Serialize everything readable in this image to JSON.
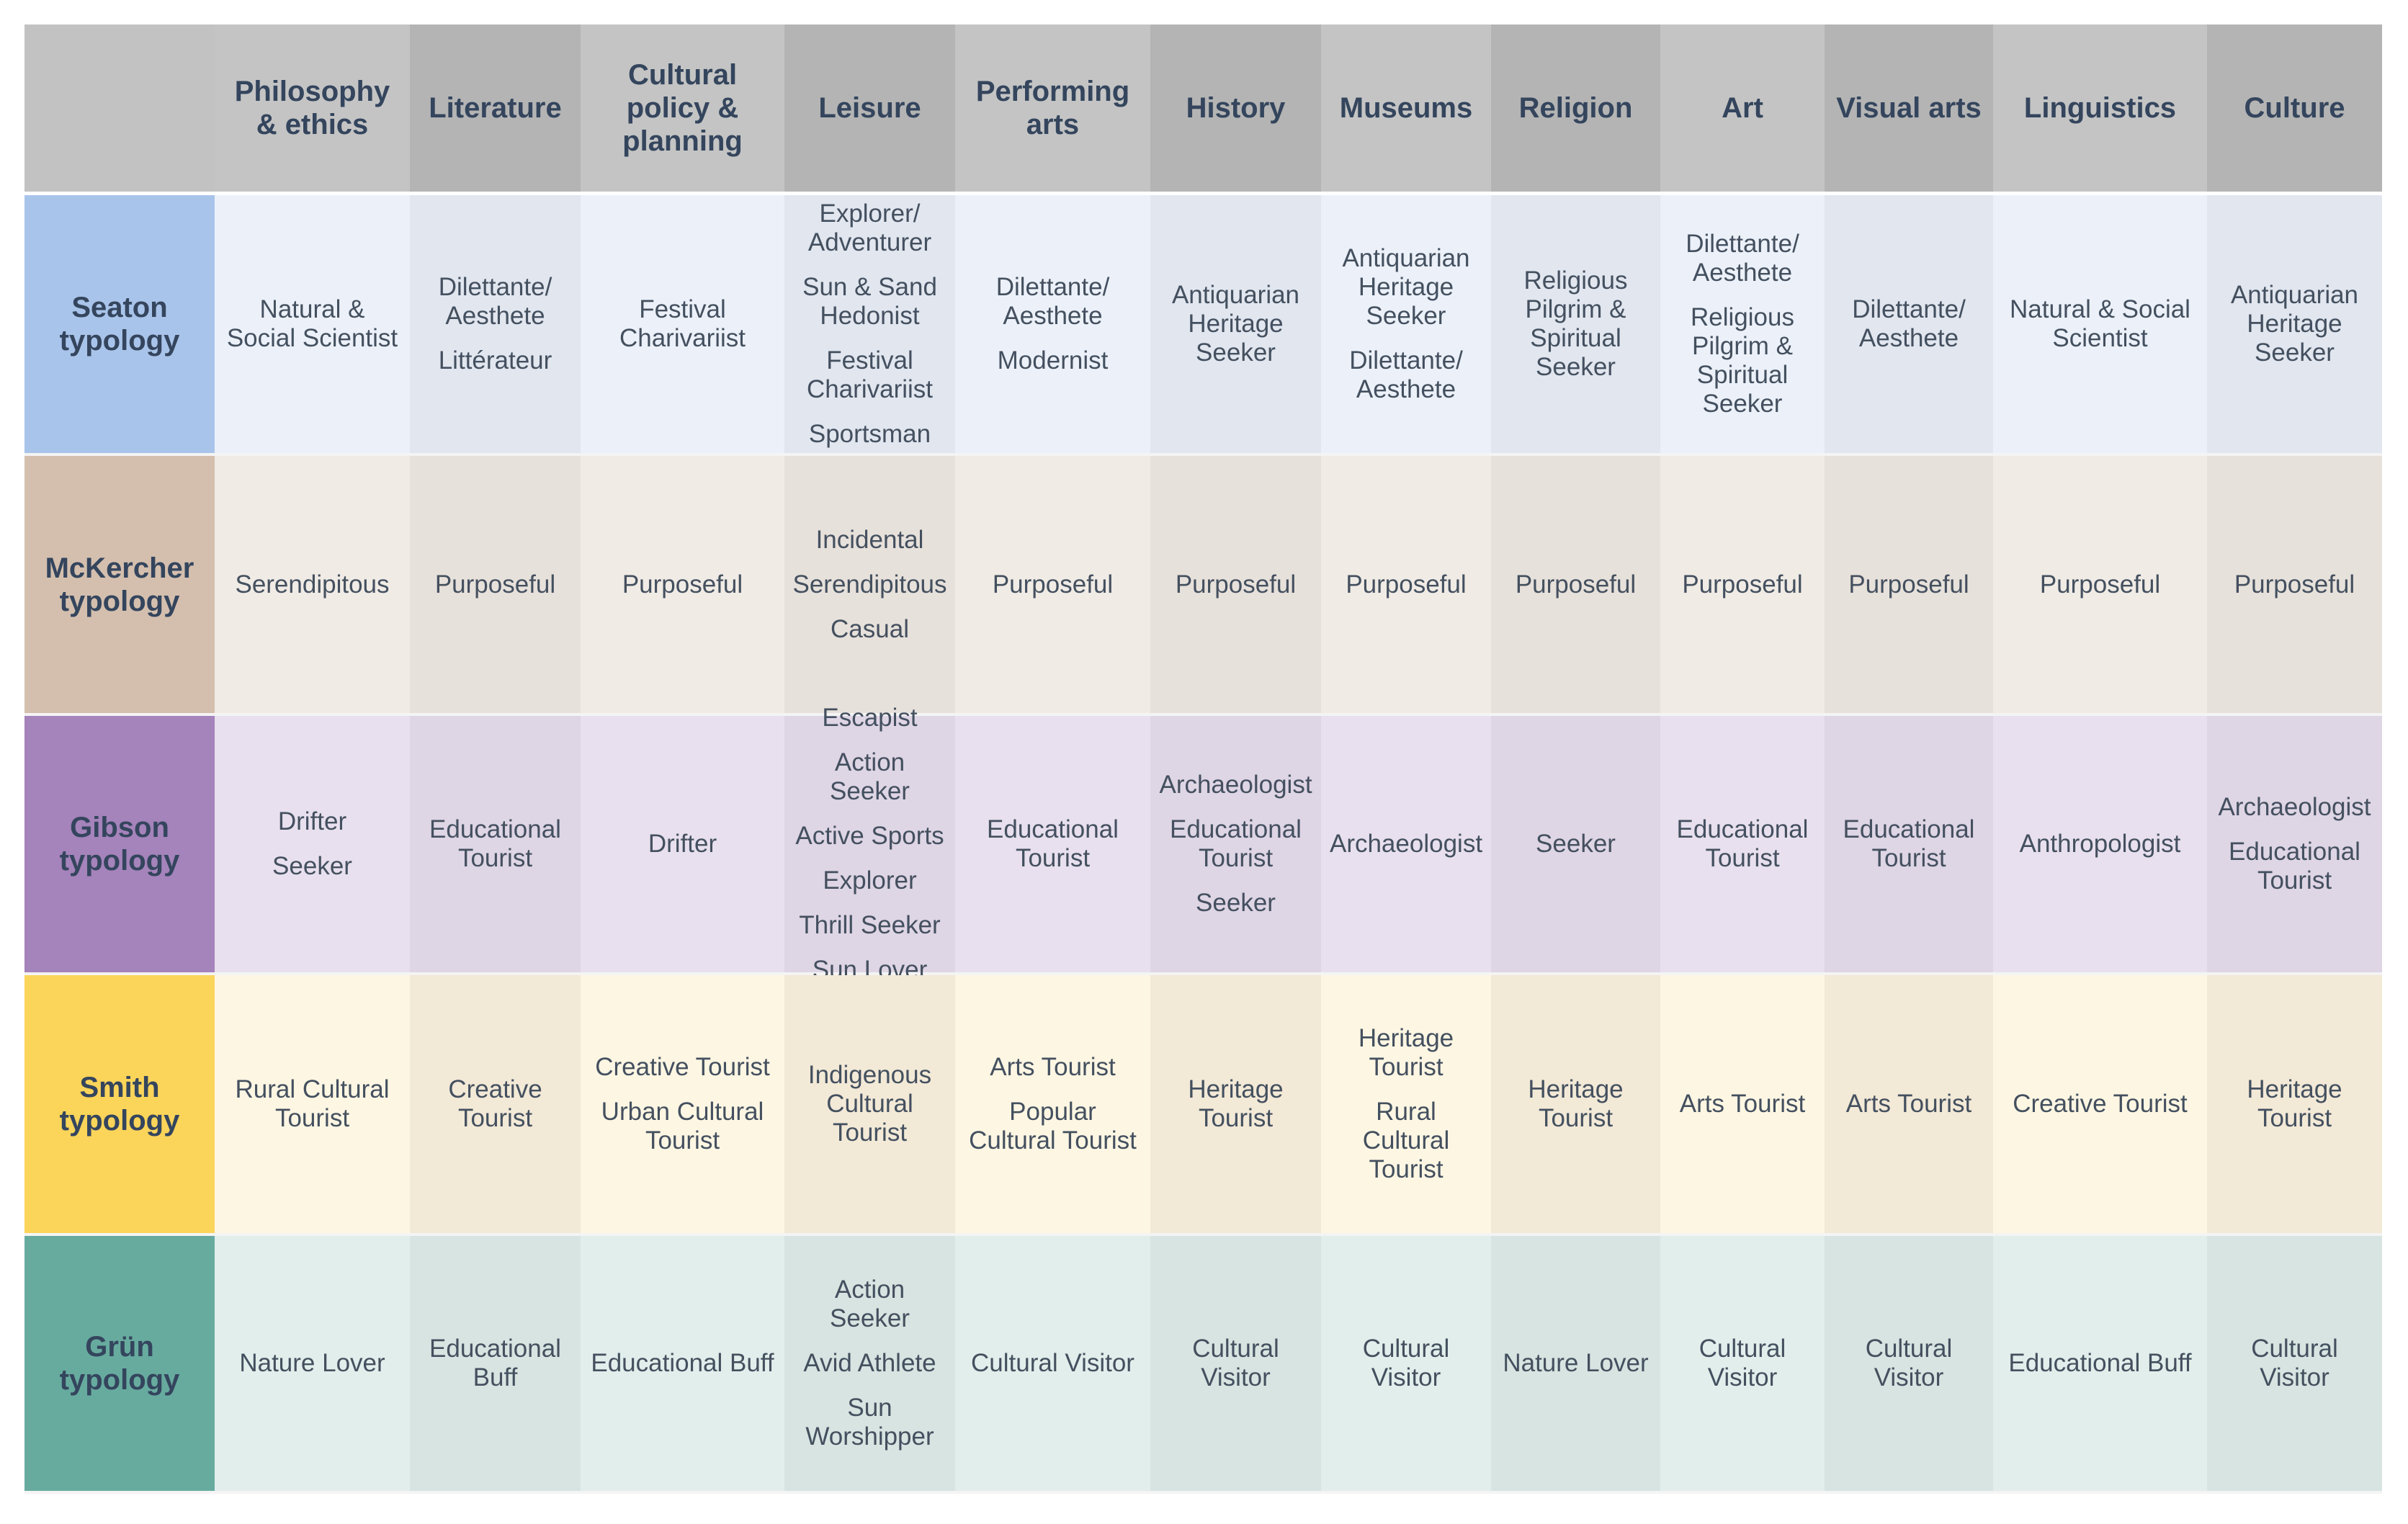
{
  "header": {
    "columns": [
      "Philosophy & ethics",
      "Literature",
      "Cultural policy & planning",
      "Leisure",
      "Performing arts",
      "History",
      "Museums",
      "Religion",
      "Art",
      "Visual arts",
      "Linguistics",
      "Culture"
    ]
  },
  "rows": [
    {
      "label": "Seaton typology",
      "cells": [
        [
          "Natural & Social Scientist"
        ],
        [
          "Dilettante/ Aesthete",
          "Littérateur"
        ],
        [
          "Festival Charivariist"
        ],
        [
          "Explorer/ Adventurer",
          "Sun & Sand Hedonist",
          "Festival Charivariist",
          "Sportsman"
        ],
        [
          "Dilettante/ Aesthete",
          "Modernist"
        ],
        [
          "Antiquarian Heritage Seeker"
        ],
        [
          "Antiquarian Heritage Seeker",
          "Dilettante/ Aesthete"
        ],
        [
          "Religious Pilgrim & Spiritual Seeker"
        ],
        [
          "Dilettante/ Aesthete",
          "Religious Pilgrim & Spiritual Seeker"
        ],
        [
          "Dilettante/ Aesthete"
        ],
        [
          "Natural & Social Scientist"
        ],
        [
          "Antiquarian Heritage Seeker"
        ]
      ]
    },
    {
      "label": "McKercher typology",
      "cells": [
        [
          "Serendipitous"
        ],
        [
          "Purposeful"
        ],
        [
          "Purposeful"
        ],
        [
          "Incidental",
          "Serendipitous",
          "Casual"
        ],
        [
          "Purposeful"
        ],
        [
          "Purposeful"
        ],
        [
          "Purposeful"
        ],
        [
          "Purposeful"
        ],
        [
          "Purposeful"
        ],
        [
          "Purposeful"
        ],
        [
          "Purposeful"
        ],
        [
          "Purposeful"
        ]
      ]
    },
    {
      "label": "Gibson typology",
      "cells": [
        [
          "Drifter",
          "Seeker"
        ],
        [
          "Educational Tourist"
        ],
        [
          "Drifter"
        ],
        [
          "Escapist",
          "Action Seeker",
          "Active Sports",
          "Explorer",
          "Thrill Seeker",
          "Sun Lover"
        ],
        [
          "Educational Tourist"
        ],
        [
          "Archaeologist",
          "Educational Tourist",
          "Seeker"
        ],
        [
          "Archaeologist"
        ],
        [
          "Seeker"
        ],
        [
          "Educational Tourist"
        ],
        [
          "Educational Tourist"
        ],
        [
          "Anthropologist"
        ],
        [
          "Archaeologist",
          "Educational Tourist"
        ]
      ]
    },
    {
      "label": "Smith typology",
      "cells": [
        [
          "Rural Cultural Tourist"
        ],
        [
          "Creative Tourist"
        ],
        [
          "Creative Tourist",
          "Urban Cultural Tourist"
        ],
        [
          "Indigenous Cultural Tourist"
        ],
        [
          "Arts Tourist",
          "Popular Cultural Tourist"
        ],
        [
          "Heritage Tourist"
        ],
        [
          "Heritage Tourist",
          "Rural Cultural Tourist"
        ],
        [
          "Heritage Tourist"
        ],
        [
          "Arts Tourist"
        ],
        [
          "Arts Tourist"
        ],
        [
          "Creative Tourist"
        ],
        [
          "Heritage Tourist"
        ]
      ]
    },
    {
      "label": "Grün typology",
      "cells": [
        [
          "Nature Lover"
        ],
        [
          "Educational Buff"
        ],
        [
          "Educational Buff"
        ],
        [
          "Action Seeker",
          "Avid Athlete",
          "Sun Worshipper"
        ],
        [
          "Cultural Visitor"
        ],
        [
          "Cultural Visitor"
        ],
        [
          "Cultural Visitor"
        ],
        [
          "Nature Lover"
        ],
        [
          "Cultural Visitor"
        ],
        [
          "Cultural Visitor"
        ],
        [
          "Educational Buff"
        ],
        [
          "Cultural Visitor"
        ]
      ]
    }
  ]
}
